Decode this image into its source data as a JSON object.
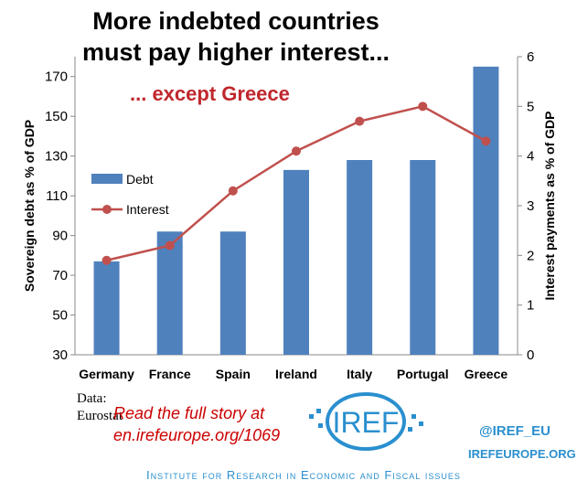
{
  "chart_data": {
    "type": "bar+line",
    "title": "More indebted countries must pay higher interest...",
    "title_line1": "More indebted countries",
    "title_line2": "must pay higher interest...",
    "subtitle": "... except Greece",
    "categories": [
      "Germany",
      "France",
      "Spain",
      "Ireland",
      "Italy",
      "Portugal",
      "Greece"
    ],
    "series": [
      {
        "name": "Debt",
        "type": "bar",
        "axis": "left",
        "color": "#4f81bd",
        "values": [
          77,
          92,
          92,
          123,
          128,
          128,
          175
        ]
      },
      {
        "name": "Interest",
        "type": "line",
        "axis": "right",
        "color": "#c0504d",
        "values": [
          1.9,
          2.2,
          3.3,
          4.1,
          4.7,
          5.0,
          4.3
        ]
      }
    ],
    "ylabel": "Sovereign debt as % of GDP",
    "y2label": "Interest payments as % of GDP",
    "ylim": [
      30,
      180
    ],
    "yticks": [
      30,
      50,
      70,
      90,
      110,
      130,
      150,
      170
    ],
    "y2lim": [
      0,
      6
    ],
    "y2ticks": [
      0,
      1,
      2,
      3,
      4,
      5,
      6
    ],
    "legend": "left-middle",
    "grid": false
  },
  "footer": {
    "source": [
      "Data:",
      "Eurostat"
    ],
    "story": [
      "Read the full story at",
      "en.irefeurope.org/1069"
    ],
    "logo_text": "IREF",
    "twitter": "@IREF_EU",
    "website": "IREFEUROPE.ORG",
    "institute": "Institute for Research in Economic and Fiscal issues"
  }
}
